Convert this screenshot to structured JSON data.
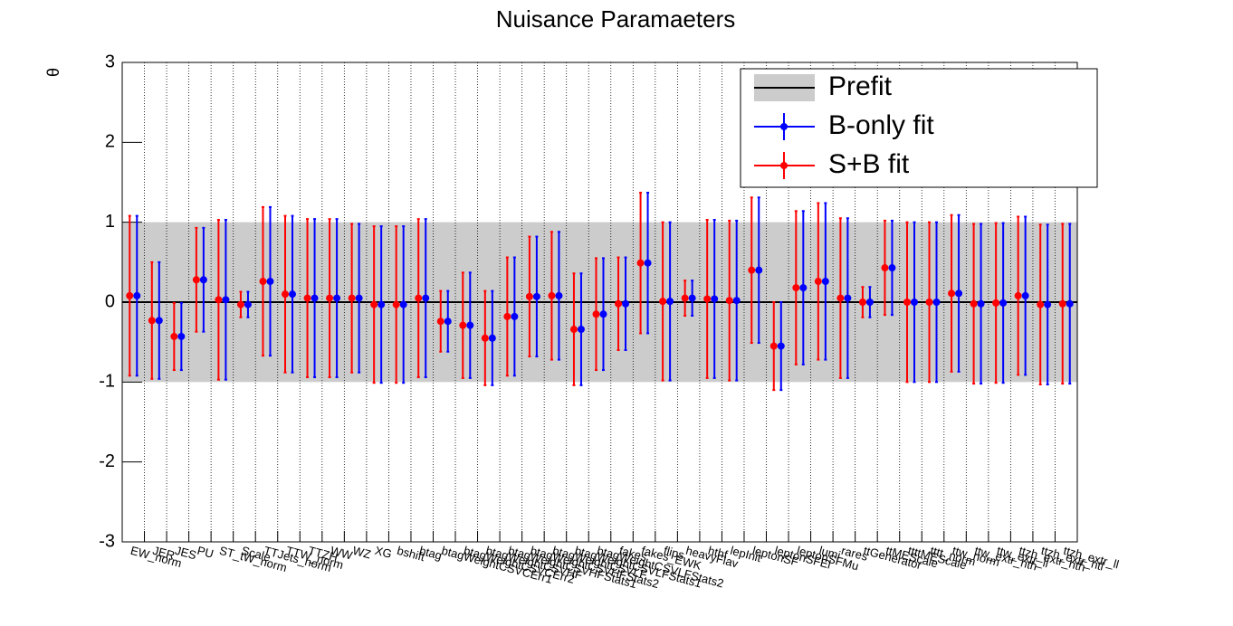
{
  "chart_data": {
    "type": "errorbar",
    "title": "Nuisance Paramaeters",
    "y_label": "θ",
    "categories": [
      "EW_norm",
      "JER",
      "JES",
      "PU",
      "ST_tW_norm",
      "Scale",
      "TTJets_norm",
      "TTW_norm",
      "TTZH",
      "WW",
      "WZ",
      "XG",
      "bshift",
      "btag",
      "btagWeightCSVCErr1",
      "btagWeightCSVCErr2",
      "btagWeightCSVHF",
      "btagWeightCSVHFStats1",
      "btagWeightCSVHFStats2",
      "btagWeightCSVLF",
      "btagWeightCSVLFStats1",
      "btagWeightCSVLFStats2",
      "fakes",
      "fakes_EWK",
      "flips",
      "heavyFlav",
      "hthf",
      "lepInit",
      "leptonSF",
      "leptonSFEl",
      "leptonSFMu",
      "lumi",
      "rares",
      "ttGenerator",
      "ttMEScale",
      "ttttMEScale",
      "tttt_norm",
      "ttw_norm",
      "ttw_extr_hth",
      "ttw_extr_ll",
      "ttzh_extr_hth",
      "ttzh_extr_htl",
      "ttzh_extr_ll"
    ],
    "prefit": {
      "name": "Prefit",
      "value": 0,
      "error": 1,
      "color": "#cccccc",
      "line_color": "#000000"
    },
    "series": [
      {
        "name": "B-only fit",
        "color": "#0000ff",
        "values": [
          0.08,
          -0.23,
          -0.43,
          0.28,
          0.03,
          -0.03,
          0.26,
          0.1,
          0.05,
          0.05,
          0.05,
          -0.03,
          -0.03,
          0.05,
          -0.24,
          -0.29,
          -0.45,
          -0.18,
          0.07,
          0.08,
          -0.34,
          -0.15,
          -0.02,
          0.49,
          0.01,
          0.05,
          0.04,
          0.02,
          0.4,
          -0.55,
          0.18,
          0.26,
          0.05,
          0,
          0.43,
          0,
          0,
          0.11,
          -0.02,
          -0.01,
          0.08,
          -0.03,
          -0.02
        ],
        "errors": [
          1,
          0.73,
          0.42,
          0.65,
          1,
          0.16,
          0.93,
          0.98,
          0.99,
          0.99,
          0.93,
          0.98,
          0.98,
          0.99,
          0.38,
          0.66,
          0.59,
          0.74,
          0.75,
          0.8,
          0.7,
          0.7,
          0.58,
          0.88,
          0.99,
          0.22,
          0.99,
          1,
          0.91,
          0.55,
          0.96,
          0.98,
          1,
          0.19,
          0.59,
          1,
          1,
          0.98,
          1,
          1,
          0.99,
          1,
          1
        ]
      },
      {
        "name": "S+B fit",
        "color": "#ff0000",
        "values": [
          0.08,
          -0.23,
          -0.43,
          0.28,
          0.03,
          -0.03,
          0.26,
          0.1,
          0.05,
          0.05,
          0.05,
          -0.03,
          -0.03,
          0.05,
          -0.24,
          -0.29,
          -0.45,
          -0.18,
          0.07,
          0.08,
          -0.34,
          -0.15,
          -0.02,
          0.49,
          0.01,
          0.05,
          0.04,
          0.02,
          0.4,
          -0.55,
          0.18,
          0.26,
          0.05,
          0,
          0.43,
          0,
          0,
          0.11,
          -0.02,
          -0.01,
          0.08,
          -0.03,
          -0.02
        ],
        "errors": [
          1,
          0.73,
          0.42,
          0.65,
          1,
          0.16,
          0.93,
          0.98,
          0.99,
          0.99,
          0.93,
          0.98,
          0.98,
          0.99,
          0.38,
          0.66,
          0.59,
          0.74,
          0.75,
          0.8,
          0.7,
          0.7,
          0.58,
          0.88,
          0.99,
          0.22,
          0.99,
          1,
          0.91,
          0.55,
          0.96,
          0.98,
          1,
          0.19,
          0.59,
          1,
          1,
          0.98,
          1,
          1,
          0.99,
          1,
          1
        ]
      }
    ],
    "ylim": [
      -3,
      3
    ],
    "yticks": [
      -3,
      -2,
      -1,
      0,
      1,
      2,
      3
    ],
    "grid": true,
    "legend": "top-right"
  }
}
